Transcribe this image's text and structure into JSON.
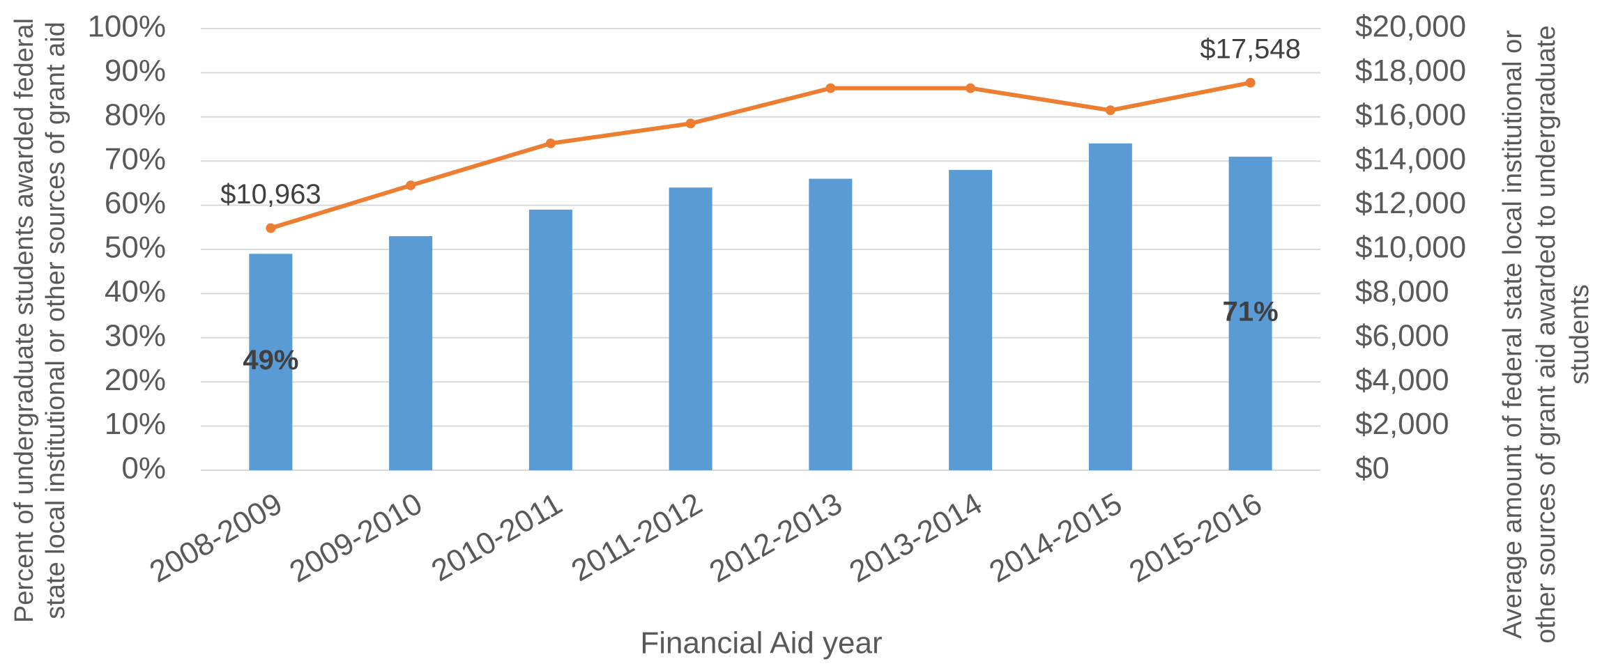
{
  "chart_data": {
    "type": "bar_line",
    "categories": [
      "2008-2009",
      "2009-2010",
      "2010-2011",
      "2011-2012",
      "2012-2013",
      "2013-2014",
      "2014-2015",
      "2015-2016"
    ],
    "x_label": "Financial Aid year",
    "y_label": [
      "Percent of undergraduate students awarded federal",
      "state  local  institutional or other sources of grant aid"
    ],
    "y2_label": [
      "Average amount of federal  state  local  institutional or",
      "other sources of grant aid awarded to undergraduate",
      "students"
    ],
    "series": [
      {
        "type": "bar",
        "color": "#5b9bd5",
        "values": [
          49,
          53,
          59,
          64,
          66,
          68,
          74,
          71
        ],
        "value_labels": [
          "49%",
          null,
          null,
          null,
          null,
          null,
          null,
          "71%"
        ]
      },
      {
        "type": "line",
        "axis": "y2",
        "color": "#ed7d31",
        "values": [
          10963,
          12900,
          14800,
          15700,
          17300,
          17300,
          16300,
          17548
        ],
        "value_labels": [
          "$10,963",
          null,
          null,
          null,
          null,
          null,
          null,
          "$17,548"
        ]
      }
    ],
    "ylim": [
      0,
      100
    ],
    "yticks": [
      {
        "value": 0,
        "label": "0%"
      },
      {
        "value": 10,
        "label": "10%"
      },
      {
        "value": 20,
        "label": "20%"
      },
      {
        "value": 30,
        "label": "30%"
      },
      {
        "value": 40,
        "label": "40%"
      },
      {
        "value": 50,
        "label": "50%"
      },
      {
        "value": 60,
        "label": "60%"
      },
      {
        "value": 70,
        "label": "70%"
      },
      {
        "value": 80,
        "label": "80%"
      },
      {
        "value": 90,
        "label": "90%"
      },
      {
        "value": 100,
        "label": "100%"
      }
    ],
    "y2lim": [
      0,
      20000
    ],
    "y2ticks": [
      {
        "value": 0,
        "label": "$0"
      },
      {
        "value": 2000,
        "label": "$2,000"
      },
      {
        "value": 4000,
        "label": "$4,000"
      },
      {
        "value": 6000,
        "label": "$6,000"
      },
      {
        "value": 8000,
        "label": "$8,000"
      },
      {
        "value": 10000,
        "label": "$10,000"
      },
      {
        "value": 12000,
        "label": "$12,000"
      },
      {
        "value": 14000,
        "label": "$14,000"
      },
      {
        "value": 16000,
        "label": "$16,000"
      },
      {
        "value": 18000,
        "label": "$18,000"
      },
      {
        "value": 20000,
        "label": "$20,000"
      }
    ],
    "grid": true
  }
}
